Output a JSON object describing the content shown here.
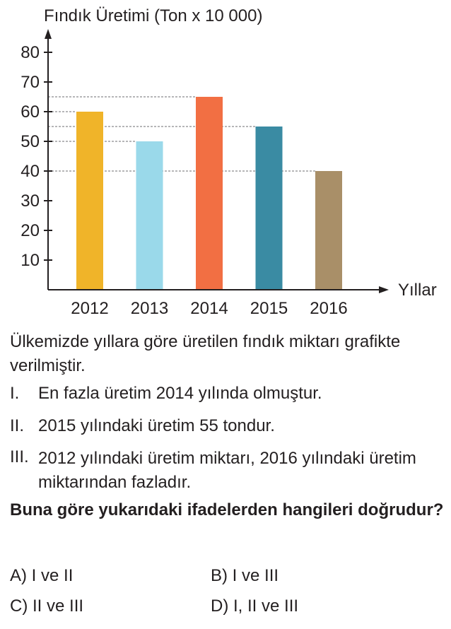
{
  "chart_data": {
    "type": "bar",
    "title": "Fındık Üretimi (Ton x 10 000)",
    "xlabel": "Yıllar",
    "ylabel": "",
    "categories": [
      "2012",
      "2013",
      "2014",
      "2015",
      "2016"
    ],
    "values": [
      60,
      50,
      65,
      55,
      40
    ],
    "yticks": [
      10,
      20,
      30,
      40,
      50,
      60,
      70,
      80
    ],
    "ylim": [
      0,
      85
    ],
    "colors": [
      "#f0b429",
      "#9ad9ea",
      "#f26f43",
      "#3a8ba3",
      "#a98f68"
    ],
    "guide_lines": [
      65,
      60,
      55,
      50,
      40
    ],
    "grid": false,
    "legend": "none"
  },
  "question": {
    "intro": "Ülkemizde yıllara göre üretilen fındık miktarı grafikte verilmiştir.",
    "statements": [
      {
        "num": "I.",
        "text": "En fazla üretim 2014 yılında olmuştur."
      },
      {
        "num": "II.",
        "text": "2015 yılındaki üretim 55 tondur."
      },
      {
        "num": "III.",
        "text": "2012 yılındaki üretim miktarı, 2016 yılındaki üretim miktarından fazladır."
      }
    ],
    "prompt": "Buna göre yukarıdaki ifadelerden hangileri doğrudur?",
    "options": [
      {
        "label": "A)",
        "text": "I ve II"
      },
      {
        "label": "B)",
        "text": "I ve III"
      },
      {
        "label": "C)",
        "text": "II ve III"
      },
      {
        "label": "D)",
        "text": "I, II ve III"
      }
    ]
  }
}
